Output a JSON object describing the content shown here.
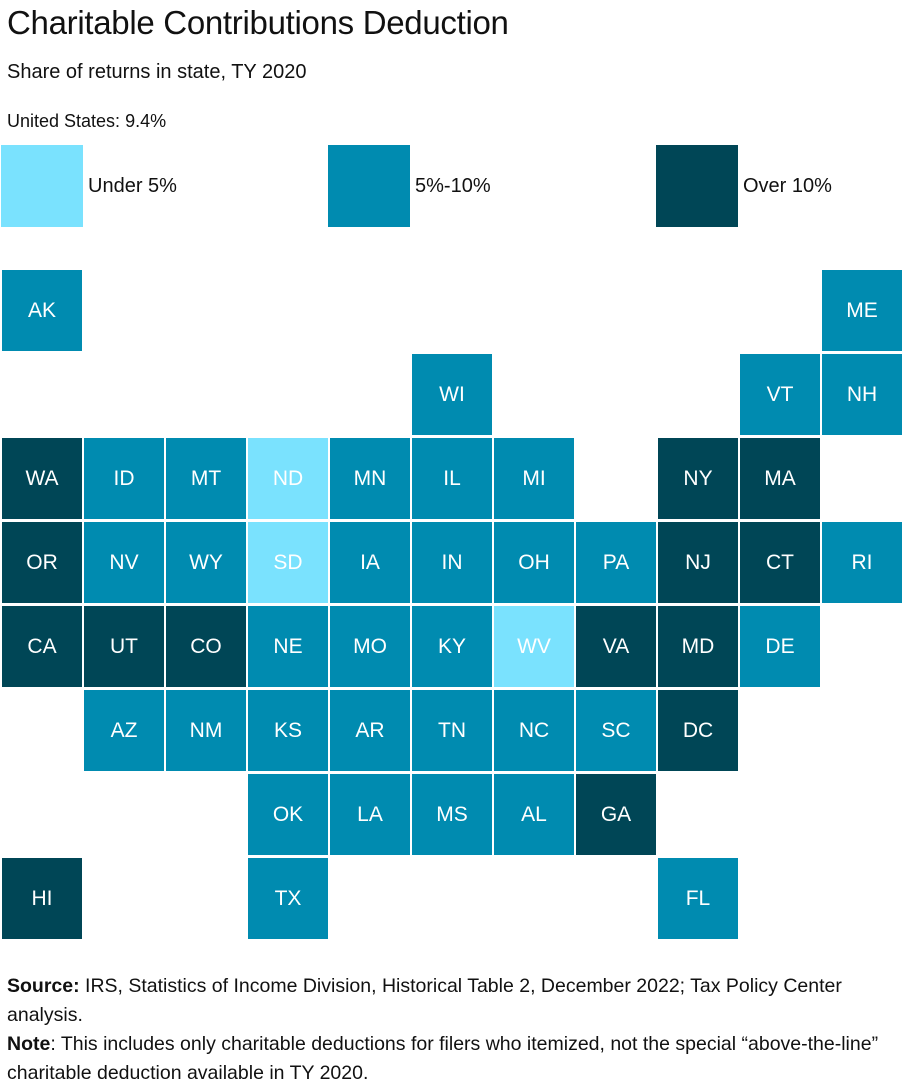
{
  "title": "Charitable Contributions Deduction",
  "subtitle": "Share of returns in state, TY 2020",
  "us_value": "United States: 9.4%",
  "legend": [
    {
      "label": "Under 5%",
      "color": "#7ae2fe",
      "category": "low"
    },
    {
      "label": "5%-10%",
      "color": "#008bb0",
      "category": "mid"
    },
    {
      "label": "Over 10%",
      "color": "#004656",
      "category": "high"
    }
  ],
  "chart_data": {
    "type": "heatmap",
    "title": "Charitable Contributions Deduction",
    "subtitle": "Share of returns in state, TY 2020",
    "national_value": "9.4%",
    "categories": [
      "Under 5%",
      "5%-10%",
      "Over 10%"
    ],
    "states": [
      {
        "abbr": "AK",
        "row": 0,
        "col": 0,
        "category": "5%-10%"
      },
      {
        "abbr": "ME",
        "row": 0,
        "col": 10,
        "category": "5%-10%"
      },
      {
        "abbr": "WI",
        "row": 1,
        "col": 5,
        "category": "5%-10%"
      },
      {
        "abbr": "VT",
        "row": 1,
        "col": 9,
        "category": "5%-10%"
      },
      {
        "abbr": "NH",
        "row": 1,
        "col": 10,
        "category": "5%-10%"
      },
      {
        "abbr": "WA",
        "row": 2,
        "col": 0,
        "category": "Over 10%"
      },
      {
        "abbr": "ID",
        "row": 2,
        "col": 1,
        "category": "5%-10%"
      },
      {
        "abbr": "MT",
        "row": 2,
        "col": 2,
        "category": "5%-10%"
      },
      {
        "abbr": "ND",
        "row": 2,
        "col": 3,
        "category": "Under 5%"
      },
      {
        "abbr": "MN",
        "row": 2,
        "col": 4,
        "category": "5%-10%"
      },
      {
        "abbr": "IL",
        "row": 2,
        "col": 5,
        "category": "5%-10%"
      },
      {
        "abbr": "MI",
        "row": 2,
        "col": 6,
        "category": "5%-10%"
      },
      {
        "abbr": "NY",
        "row": 2,
        "col": 8,
        "category": "Over 10%"
      },
      {
        "abbr": "MA",
        "row": 2,
        "col": 9,
        "category": "Over 10%"
      },
      {
        "abbr": "OR",
        "row": 3,
        "col": 0,
        "category": "Over 10%"
      },
      {
        "abbr": "NV",
        "row": 3,
        "col": 1,
        "category": "5%-10%"
      },
      {
        "abbr": "WY",
        "row": 3,
        "col": 2,
        "category": "5%-10%"
      },
      {
        "abbr": "SD",
        "row": 3,
        "col": 3,
        "category": "Under 5%"
      },
      {
        "abbr": "IA",
        "row": 3,
        "col": 4,
        "category": "5%-10%"
      },
      {
        "abbr": "IN",
        "row": 3,
        "col": 5,
        "category": "5%-10%"
      },
      {
        "abbr": "OH",
        "row": 3,
        "col": 6,
        "category": "5%-10%"
      },
      {
        "abbr": "PA",
        "row": 3,
        "col": 7,
        "category": "5%-10%"
      },
      {
        "abbr": "NJ",
        "row": 3,
        "col": 8,
        "category": "Over 10%"
      },
      {
        "abbr": "CT",
        "row": 3,
        "col": 9,
        "category": "Over 10%"
      },
      {
        "abbr": "RI",
        "row": 3,
        "col": 10,
        "category": "5%-10%"
      },
      {
        "abbr": "CA",
        "row": 4,
        "col": 0,
        "category": "Over 10%"
      },
      {
        "abbr": "UT",
        "row": 4,
        "col": 1,
        "category": "Over 10%"
      },
      {
        "abbr": "CO",
        "row": 4,
        "col": 2,
        "category": "Over 10%"
      },
      {
        "abbr": "NE",
        "row": 4,
        "col": 3,
        "category": "5%-10%"
      },
      {
        "abbr": "MO",
        "row": 4,
        "col": 4,
        "category": "5%-10%"
      },
      {
        "abbr": "KY",
        "row": 4,
        "col": 5,
        "category": "5%-10%"
      },
      {
        "abbr": "WV",
        "row": 4,
        "col": 6,
        "category": "Under 5%"
      },
      {
        "abbr": "VA",
        "row": 4,
        "col": 7,
        "category": "Over 10%"
      },
      {
        "abbr": "MD",
        "row": 4,
        "col": 8,
        "category": "Over 10%"
      },
      {
        "abbr": "DE",
        "row": 4,
        "col": 9,
        "category": "5%-10%"
      },
      {
        "abbr": "AZ",
        "row": 5,
        "col": 1,
        "category": "5%-10%"
      },
      {
        "abbr": "NM",
        "row": 5,
        "col": 2,
        "category": "5%-10%"
      },
      {
        "abbr": "KS",
        "row": 5,
        "col": 3,
        "category": "5%-10%"
      },
      {
        "abbr": "AR",
        "row": 5,
        "col": 4,
        "category": "5%-10%"
      },
      {
        "abbr": "TN",
        "row": 5,
        "col": 5,
        "category": "5%-10%"
      },
      {
        "abbr": "NC",
        "row": 5,
        "col": 6,
        "category": "5%-10%"
      },
      {
        "abbr": "SC",
        "row": 5,
        "col": 7,
        "category": "5%-10%"
      },
      {
        "abbr": "DC",
        "row": 5,
        "col": 8,
        "category": "Over 10%"
      },
      {
        "abbr": "OK",
        "row": 6,
        "col": 3,
        "category": "5%-10%"
      },
      {
        "abbr": "LA",
        "row": 6,
        "col": 4,
        "category": "5%-10%"
      },
      {
        "abbr": "MS",
        "row": 6,
        "col": 5,
        "category": "5%-10%"
      },
      {
        "abbr": "AL",
        "row": 6,
        "col": 6,
        "category": "5%-10%"
      },
      {
        "abbr": "GA",
        "row": 6,
        "col": 7,
        "category": "Over 10%"
      },
      {
        "abbr": "HI",
        "row": 7,
        "col": 0,
        "category": "Over 10%"
      },
      {
        "abbr": "TX",
        "row": 7,
        "col": 3,
        "category": "5%-10%"
      },
      {
        "abbr": "FL",
        "row": 7,
        "col": 8,
        "category": "5%-10%"
      }
    ]
  },
  "footer": {
    "source_label": "Source:",
    "source_text": " IRS, Statistics of Income Division, Historical Table 2, December 2022; Tax Policy Center analysis.",
    "note_label": "Note",
    "note_text": ": This includes only charitable deductions for filers who itemized, not the special “above-the-line” charitable deduction available in TY 2020."
  }
}
